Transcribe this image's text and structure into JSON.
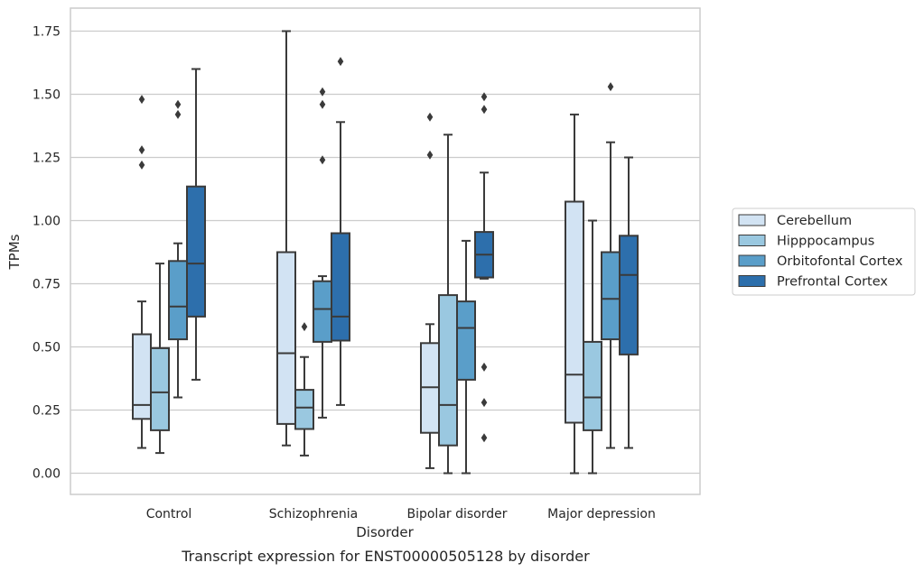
{
  "chart_data": {
    "type": "box",
    "title": "",
    "caption": "Transcript expression for ENST00000505128 by disorder",
    "xlabel": "Disorder",
    "ylabel": "TPMs",
    "ylim": [
      -0.08,
      1.84
    ],
    "yticks": [
      0.0,
      0.25,
      0.5,
      0.75,
      1.0,
      1.25,
      1.5,
      1.75
    ],
    "ytick_labels": [
      "0.00",
      "0.25",
      "0.50",
      "0.75",
      "1.00",
      "1.25",
      "1.50",
      "1.75"
    ],
    "grid": "horizontal",
    "legend_position": "right",
    "categories": [
      "Control",
      "Schizophrenia",
      "Bipolar disorder",
      "Major depression"
    ],
    "series": [
      {
        "name": "Cerebellum",
        "color": "#d2e3f3",
        "boxes": [
          {
            "whisker_low": 0.1,
            "q1": 0.215,
            "median": 0.27,
            "q3": 0.55,
            "whisker_high": 0.68,
            "outliers": [
              1.22,
              1.28,
              1.48
            ]
          },
          {
            "whisker_low": 0.11,
            "q1": 0.195,
            "median": 0.475,
            "q3": 0.875,
            "whisker_high": 1.75,
            "outliers": []
          },
          {
            "whisker_low": 0.02,
            "q1": 0.16,
            "median": 0.34,
            "q3": 0.515,
            "whisker_high": 0.59,
            "outliers": [
              1.26,
              1.41
            ]
          },
          {
            "whisker_low": 0.0,
            "q1": 0.2,
            "median": 0.39,
            "q3": 1.075,
            "whisker_high": 1.42,
            "outliers": []
          }
        ]
      },
      {
        "name": "Hipppocampus",
        "color": "#9ac8e0",
        "boxes": [
          {
            "whisker_low": 0.08,
            "q1": 0.17,
            "median": 0.32,
            "q3": 0.495,
            "whisker_high": 0.83,
            "outliers": []
          },
          {
            "whisker_low": 0.07,
            "q1": 0.175,
            "median": 0.26,
            "q3": 0.33,
            "whisker_high": 0.46,
            "outliers": [
              0.58
            ]
          },
          {
            "whisker_low": 0.0,
            "q1": 0.11,
            "median": 0.27,
            "q3": 0.705,
            "whisker_high": 1.34,
            "outliers": []
          },
          {
            "whisker_low": 0.0,
            "q1": 0.17,
            "median": 0.3,
            "q3": 0.52,
            "whisker_high": 1.0,
            "outliers": []
          }
        ]
      },
      {
        "name": "Orbitofontal Cortex",
        "color": "#5a9ec9",
        "boxes": [
          {
            "whisker_low": 0.3,
            "q1": 0.53,
            "median": 0.66,
            "q3": 0.84,
            "whisker_high": 0.91,
            "outliers": [
              1.42,
              1.46
            ]
          },
          {
            "whisker_low": 0.22,
            "q1": 0.52,
            "median": 0.65,
            "q3": 0.76,
            "whisker_high": 0.78,
            "outliers": [
              1.24,
              1.46,
              1.51
            ]
          },
          {
            "whisker_low": 0.0,
            "q1": 0.37,
            "median": 0.575,
            "q3": 0.68,
            "whisker_high": 0.92,
            "outliers": []
          },
          {
            "whisker_low": 0.1,
            "q1": 0.53,
            "median": 0.69,
            "q3": 0.875,
            "whisker_high": 1.31,
            "outliers": [
              1.53
            ]
          }
        ]
      },
      {
        "name": "Prefrontal Cortex",
        "color": "#2d6fac",
        "boxes": [
          {
            "whisker_low": 0.37,
            "q1": 0.62,
            "median": 0.83,
            "q3": 1.135,
            "whisker_high": 1.6,
            "outliers": []
          },
          {
            "whisker_low": 0.27,
            "q1": 0.525,
            "median": 0.62,
            "q3": 0.95,
            "whisker_high": 1.39,
            "outliers": [
              1.63
            ]
          },
          {
            "whisker_low": 0.77,
            "q1": 0.775,
            "median": 0.865,
            "q3": 0.955,
            "whisker_high": 1.19,
            "outliers": [
              0.14,
              0.28,
              0.42,
              1.44,
              1.49
            ]
          },
          {
            "whisker_low": 0.1,
            "q1": 0.47,
            "median": 0.785,
            "q3": 0.94,
            "whisker_high": 1.25,
            "outliers": []
          }
        ]
      }
    ]
  }
}
